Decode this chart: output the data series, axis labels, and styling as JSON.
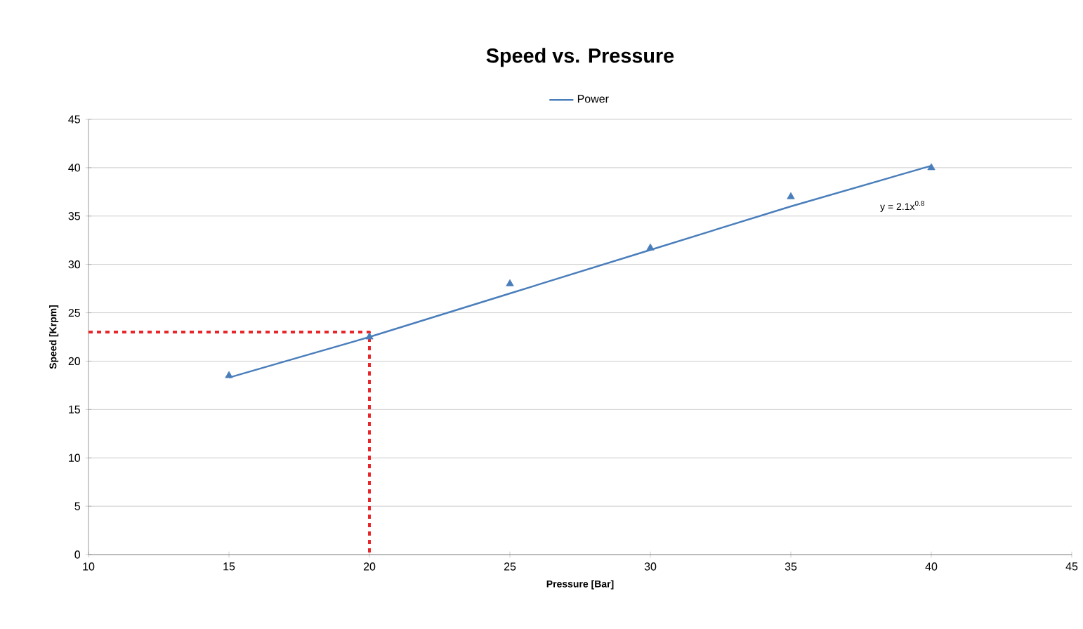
{
  "chart_data": {
    "type": "scatter",
    "title": "Speed vs. Pressure",
    "xlabel": "Pressure [Bar]",
    "ylabel": "Speed [Krpm]",
    "xlim": [
      10,
      45
    ],
    "xticks": [
      10,
      15,
      20,
      25,
      30,
      35,
      40,
      45
    ],
    "ylim": [
      0,
      45
    ],
    "yticks": [
      0,
      5,
      10,
      15,
      20,
      25,
      30,
      35,
      40,
      45
    ],
    "grid": "y",
    "legend": "top",
    "series": [
      {
        "marker": "triangle",
        "color": "#4a7ebb",
        "x": [
          15,
          20,
          25,
          30,
          35,
          40
        ],
        "values": [
          18.5,
          22.5,
          28,
          31.7,
          37,
          40
        ]
      },
      {
        "type": "line",
        "name": "Power",
        "marker": "none",
        "line_style": "solid",
        "color": "#4a7ebb",
        "x": [
          15,
          20,
          25,
          30,
          35,
          40
        ],
        "values": [
          18.3,
          22.5,
          27,
          31.5,
          36,
          40.2
        ]
      },
      {
        "type": "line",
        "marker": "none",
        "line_style": "dashed",
        "color": "#e8262a",
        "x": [
          10,
          20,
          20
        ],
        "values": [
          23,
          23,
          0
        ]
      }
    ],
    "annotations": [
      "y = 2.1x$^{0.8}$"
    ]
  }
}
